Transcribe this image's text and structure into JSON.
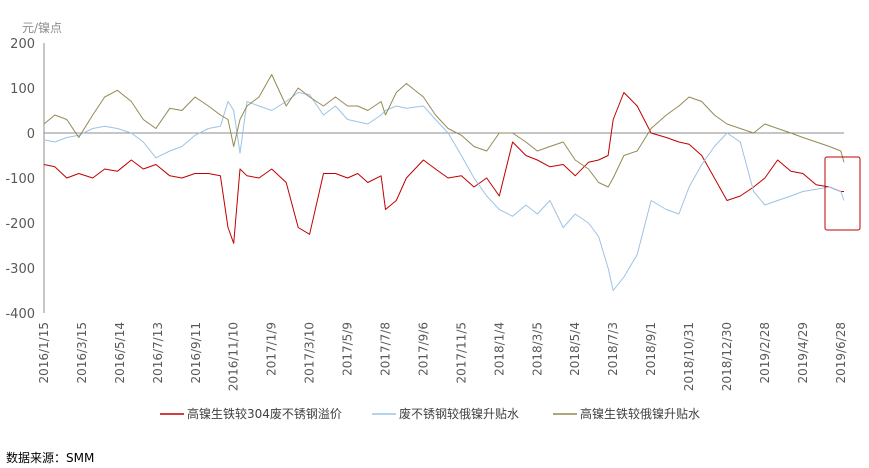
{
  "chart_data": {
    "type": "line",
    "y_unit": "元/镍点",
    "ylim": [
      -400,
      200
    ],
    "y_ticks": [
      200,
      100,
      0,
      -100,
      -200,
      -300,
      -400
    ],
    "x_tick_labels": [
      "2016/1/15",
      "2016/3/15",
      "2016/5/14",
      "2016/7/13",
      "2016/9/11",
      "2016/11/10",
      "2017/1/9",
      "2017/3/10",
      "2017/5/9",
      "2017/7/8",
      "2017/9/6",
      "2017/11/5",
      "2018/1/4",
      "2018/3/5",
      "2018/5/4",
      "2018/7/3",
      "2018/9/1",
      "2018/10/31",
      "2018/12/30",
      "2019/2/28",
      "2019/4/29",
      "2019/6/28"
    ],
    "grid": false,
    "legend_position": "bottom",
    "x_start": "2016/1/15",
    "x_end": "2019/7/3",
    "series": [
      {
        "name": "高镍生铁较304废不锈钢溢价",
        "color": "#c00000",
        "x": [
          "2016/1/15",
          "2016/2/1",
          "2016/2/20",
          "2016/3/10",
          "2016/4/1",
          "2016/4/20",
          "2016/5/10",
          "2016/6/1",
          "2016/6/20",
          "2016/7/10",
          "2016/8/1",
          "2016/8/20",
          "2016/9/10",
          "2016/10/1",
          "2016/10/20",
          "2016/11/1",
          "2016/11/10",
          "2016/11/20",
          "2016/12/1",
          "2016/12/20",
          "2017/1/9",
          "2017/2/1",
          "2017/2/20",
          "2017/3/10",
          "2017/4/1",
          "2017/4/20",
          "2017/5/9",
          "2017/5/25",
          "2017/6/10",
          "2017/7/1",
          "2017/7/8",
          "2017/7/25",
          "2017/8/10",
          "2017/9/6",
          "2017/9/25",
          "2017/10/15",
          "2017/11/5",
          "2017/11/25",
          "2017/12/15",
          "2018/1/4",
          "2018/1/25",
          "2018/2/15",
          "2018/3/5",
          "2018/3/25",
          "2018/4/15",
          "2018/5/4",
          "2018/5/25",
          "2018/6/10",
          "2018/6/25",
          "2018/7/3",
          "2018/7/20",
          "2018/8/10",
          "2018/9/1",
          "2018/9/25",
          "2018/10/15",
          "2018/10/31",
          "2018/11/20",
          "2018/12/10",
          "2018/12/30",
          "2019/1/20",
          "2019/2/10",
          "2019/2/28",
          "2019/3/20",
          "2019/4/10",
          "2019/4/29",
          "2019/5/20",
          "2019/6/10",
          "2019/6/28",
          "2019/7/3"
        ],
        "y": [
          -70,
          -75,
          -100,
          -90,
          -100,
          -80,
          -85,
          -60,
          -80,
          -70,
          -95,
          -100,
          -90,
          -90,
          -95,
          -210,
          -245,
          -80,
          -95,
          -100,
          -80,
          -110,
          -210,
          -225,
          -90,
          -90,
          -100,
          -90,
          -110,
          -95,
          -170,
          -150,
          -100,
          -60,
          -80,
          -100,
          -95,
          -120,
          -100,
          -140,
          -20,
          -50,
          -60,
          -75,
          -70,
          -95,
          -65,
          -60,
          -50,
          30,
          90,
          60,
          0,
          -10,
          -20,
          -25,
          -50,
          -100,
          -150,
          -140,
          -120,
          -100,
          -60,
          -85,
          -90,
          -115,
          -120,
          -130,
          -130
        ]
      },
      {
        "name": "废不锈钢较俄镍升贴水",
        "color": "#9dc3e6",
        "x": [
          "2016/1/15",
          "2016/2/1",
          "2016/2/20",
          "2016/3/10",
          "2016/4/1",
          "2016/4/20",
          "2016/5/10",
          "2016/6/1",
          "2016/6/20",
          "2016/7/10",
          "2016/8/1",
          "2016/8/20",
          "2016/9/10",
          "2016/10/1",
          "2016/10/20",
          "2016/11/1",
          "2016/11/10",
          "2016/11/20",
          "2016/12/1",
          "2016/12/20",
          "2017/1/9",
          "2017/2/1",
          "2017/2/20",
          "2017/3/10",
          "2017/4/1",
          "2017/4/20",
          "2017/5/9",
          "2017/5/25",
          "2017/6/10",
          "2017/7/1",
          "2017/7/8",
          "2017/7/25",
          "2017/8/10",
          "2017/9/6",
          "2017/9/25",
          "2017/10/15",
          "2017/11/5",
          "2017/11/25",
          "2017/12/15",
          "2018/1/4",
          "2018/1/25",
          "2018/2/15",
          "2018/3/5",
          "2018/3/25",
          "2018/4/15",
          "2018/5/4",
          "2018/5/25",
          "2018/6/10",
          "2018/6/25",
          "2018/7/3",
          "2018/7/20",
          "2018/8/10",
          "2018/9/1",
          "2018/9/25",
          "2018/10/15",
          "2018/10/31",
          "2018/11/20",
          "2018/12/10",
          "2018/12/30",
          "2019/1/20",
          "2019/2/10",
          "2019/2/28",
          "2019/3/20",
          "2019/4/10",
          "2019/4/29",
          "2019/5/20",
          "2019/6/10",
          "2019/6/28",
          "2019/7/3"
        ],
        "y": [
          -15,
          -20,
          -10,
          -5,
          10,
          15,
          10,
          0,
          -20,
          -55,
          -40,
          -30,
          -5,
          10,
          15,
          70,
          50,
          -45,
          70,
          60,
          50,
          70,
          90,
          85,
          40,
          60,
          30,
          25,
          20,
          40,
          50,
          60,
          55,
          60,
          30,
          0,
          -50,
          -100,
          -140,
          -170,
          -185,
          -160,
          -180,
          -150,
          -210,
          -180,
          -200,
          -230,
          -300,
          -350,
          -320,
          -270,
          -150,
          -170,
          -180,
          -120,
          -70,
          -30,
          0,
          -20,
          -130,
          -160,
          -150,
          -140,
          -130,
          -125,
          -120,
          -130,
          -150
        ]
      },
      {
        "name": "高镍生铁较俄镍升贴水",
        "color": "#948a54",
        "x": [
          "2016/1/15",
          "2016/2/1",
          "2016/2/20",
          "2016/3/10",
          "2016/4/1",
          "2016/4/20",
          "2016/5/10",
          "2016/6/1",
          "2016/6/20",
          "2016/7/10",
          "2016/8/1",
          "2016/8/20",
          "2016/9/10",
          "2016/10/1",
          "2016/10/20",
          "2016/11/1",
          "2016/11/10",
          "2016/11/20",
          "2016/12/1",
          "2016/12/20",
          "2017/1/9",
          "2017/2/1",
          "2017/2/20",
          "2017/3/10",
          "2017/4/1",
          "2017/4/20",
          "2017/5/9",
          "2017/5/25",
          "2017/6/10",
          "2017/7/1",
          "2017/7/8",
          "2017/7/25",
          "2017/8/10",
          "2017/9/6",
          "2017/9/25",
          "2017/10/15",
          "2017/11/5",
          "2017/11/25",
          "2017/12/15",
          "2018/1/4",
          "2018/1/25",
          "2018/2/15",
          "2018/3/5",
          "2018/3/25",
          "2018/4/15",
          "2018/5/4",
          "2018/5/25",
          "2018/6/10",
          "2018/6/25",
          "2018/7/3",
          "2018/7/20",
          "2018/8/10",
          "2018/9/1",
          "2018/9/25",
          "2018/10/15",
          "2018/10/31",
          "2018/11/20",
          "2018/12/10",
          "2018/12/30",
          "2019/1/20",
          "2019/2/10",
          "2019/2/28",
          "2019/3/20",
          "2019/4/10",
          "2019/4/29",
          "2019/5/20",
          "2019/6/10",
          "2019/6/28",
          "2019/7/3"
        ],
        "y": [
          20,
          40,
          30,
          -10,
          40,
          80,
          95,
          70,
          30,
          10,
          55,
          50,
          80,
          60,
          40,
          30,
          -30,
          30,
          60,
          80,
          130,
          60,
          100,
          80,
          60,
          80,
          60,
          60,
          50,
          70,
          40,
          90,
          110,
          80,
          40,
          10,
          -5,
          -30,
          -40,
          0,
          0,
          -20,
          -40,
          -30,
          -20,
          -60,
          -80,
          -110,
          -120,
          -100,
          -50,
          -40,
          10,
          40,
          60,
          80,
          70,
          40,
          20,
          10,
          0,
          20,
          10,
          0,
          -10,
          -20,
          -30,
          -40,
          -65
        ]
      }
    ]
  },
  "source_text": "数据来源：SMM"
}
